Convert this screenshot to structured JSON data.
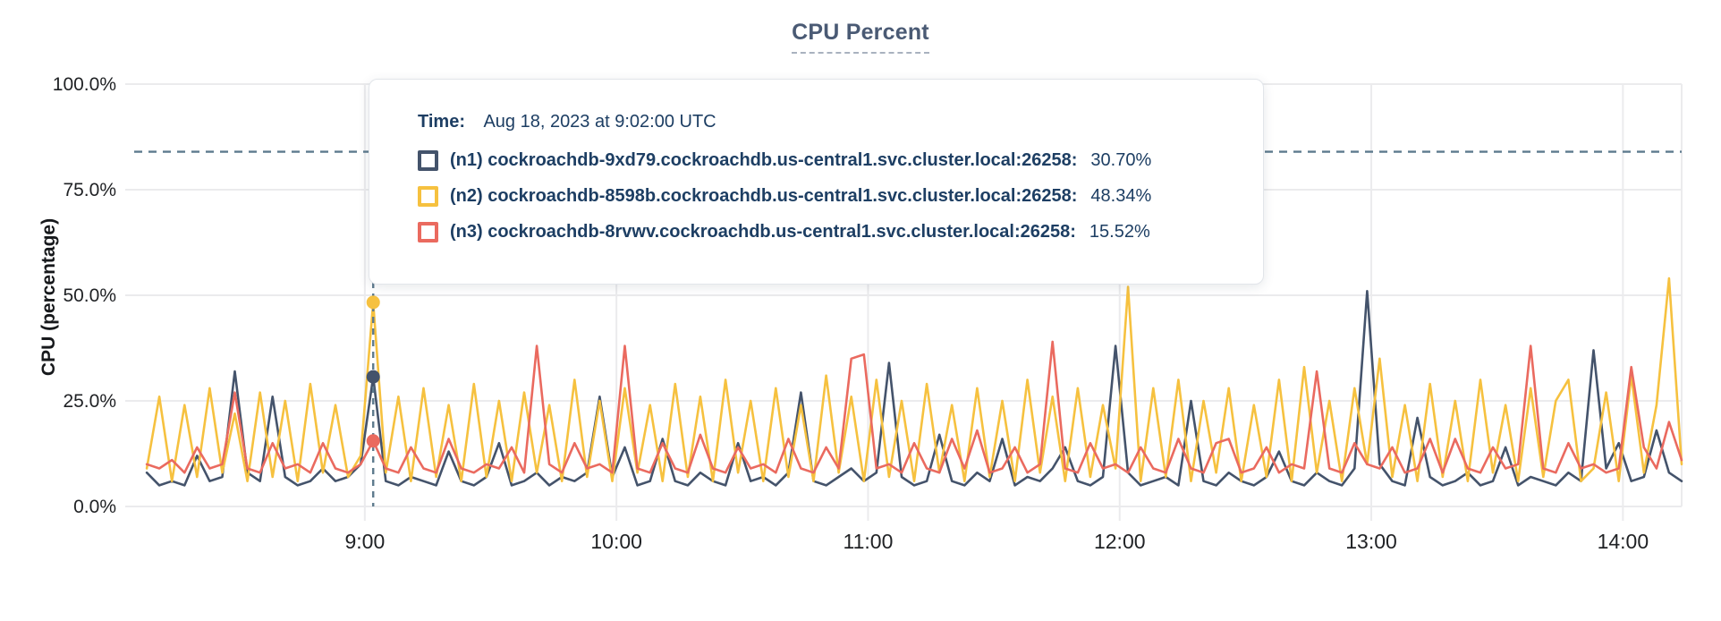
{
  "title": "CPU Percent",
  "tooltip": {
    "time_label": "Time:",
    "time_value": "Aug 18, 2023 at 9:02:00 UTC",
    "rows": [
      {
        "name": "(n1) cockroachdb-9xd79.cockroachdb.us-central1.svc.cluster.local:26258:",
        "value": "30.70%",
        "color": "#44536b"
      },
      {
        "name": "(n2) cockroachdb-8598b.cockroachdb.us-central1.svc.cluster.local:26258:",
        "value": "48.34%",
        "color": "#f6c13f"
      },
      {
        "name": "(n3) cockroachdb-8rvwv.cockroachdb.us-central1.svc.cluster.local:26258:",
        "value": "15.52%",
        "color": "#ea6a5f"
      }
    ]
  },
  "chart_data": {
    "type": "line",
    "title": "CPU Percent",
    "xlabel": "",
    "ylabel": "CPU (percentage)",
    "ylim": [
      0,
      100
    ],
    "grid": true,
    "y_ticks": [
      {
        "label": "100.0%",
        "value": 100
      },
      {
        "label": "75.0%",
        "value": 75
      },
      {
        "label": "50.0%",
        "value": 50
      },
      {
        "label": "25.0%",
        "value": 25
      },
      {
        "label": "0.0%",
        "value": 0
      }
    ],
    "x_ticks": [
      {
        "label": "9:00",
        "minute": 540
      },
      {
        "label": "10:00",
        "minute": 600
      },
      {
        "label": "11:00",
        "minute": 660
      },
      {
        "label": "12:00",
        "minute": 720
      },
      {
        "label": "13:00",
        "minute": 780
      },
      {
        "label": "14:00",
        "minute": 840
      }
    ],
    "x_domain_minutes": [
      485,
      854
    ],
    "x_start_minute": 488,
    "x_step_minutes": 3,
    "threshold_line": {
      "value": 84,
      "color": "#5d7a8d",
      "style": "dashed"
    },
    "hover": {
      "minute": 542,
      "time": "Aug 18, 2023 at 9:02:00 UTC",
      "values": [
        30.7,
        48.34,
        15.52
      ]
    },
    "grid_color": "#ebebed",
    "tick_color": "#1f2124",
    "series": [
      {
        "name": "(n1) cockroachdb-9xd79.cockroachdb.us-central1.svc.cluster.local:26258",
        "color": "#44536b",
        "values": [
          8,
          5,
          6,
          5,
          12,
          6,
          7,
          32,
          8,
          6,
          26,
          7,
          5,
          6,
          9,
          6,
          7,
          10,
          30.7,
          6,
          5,
          7,
          6,
          5,
          13,
          6,
          5,
          7,
          15,
          5,
          6,
          8,
          5,
          7,
          6,
          8,
          26,
          7,
          14,
          5,
          6,
          16,
          6,
          5,
          8,
          6,
          5,
          15,
          6,
          7,
          5,
          8,
          27,
          6,
          5,
          7,
          9,
          6,
          8,
          34,
          7,
          5,
          6,
          17,
          6,
          5,
          8,
          6,
          16,
          5,
          7,
          6,
          9,
          14,
          6,
          5,
          7,
          38,
          8,
          5,
          6,
          7,
          5,
          25,
          6,
          5,
          8,
          6,
          5,
          7,
          13,
          6,
          5,
          8,
          6,
          5,
          9,
          51,
          10,
          6,
          5,
          21,
          7,
          5,
          6,
          8,
          5,
          6,
          14,
          5,
          7,
          6,
          5,
          8,
          6,
          37,
          9,
          15,
          6,
          7,
          18,
          8,
          6
        ]
      },
      {
        "name": "(n2) cockroachdb-8598b.cockroachdb.us-central1.svc.cluster.local:26258",
        "color": "#f6c13f",
        "values": [
          9,
          26,
          6,
          24,
          7,
          28,
          8,
          22,
          6,
          27,
          7,
          25,
          6,
          29,
          8,
          24,
          7,
          12,
          48.34,
          8,
          26,
          6,
          28,
          7,
          24,
          6,
          29,
          7,
          25,
          6,
          27,
          8,
          24,
          6,
          30,
          7,
          25,
          6,
          28,
          8,
          24,
          6,
          29,
          7,
          26,
          6,
          30,
          8,
          25,
          6,
          28,
          7,
          24,
          6,
          31,
          8,
          26,
          6,
          30,
          7,
          25,
          6,
          29,
          8,
          24,
          6,
          28,
          7,
          25,
          6,
          30,
          8,
          26,
          6,
          28,
          7,
          24,
          9,
          52,
          6,
          28,
          7,
          30,
          6,
          25,
          8,
          28,
          6,
          24,
          7,
          30,
          6,
          33,
          8,
          25,
          6,
          28,
          10,
          35,
          7,
          24,
          6,
          29,
          7,
          25,
          6,
          30,
          8,
          24,
          6,
          28,
          7,
          25,
          30,
          6,
          9,
          27,
          6,
          31,
          8,
          24,
          54,
          10
        ]
      },
      {
        "name": "(n3) cockroachdb-8rvwv.cockroachdb.us-central1.svc.cluster.local:26258",
        "color": "#ea6a5f",
        "values": [
          10,
          9,
          11,
          8,
          14,
          9,
          10,
          27,
          9,
          8,
          15,
          9,
          10,
          8,
          15,
          9,
          8,
          10,
          15.52,
          9,
          8,
          14,
          9,
          8,
          16,
          9,
          8,
          10,
          9,
          14,
          8,
          38,
          10,
          8,
          15,
          9,
          10,
          8,
          38,
          9,
          8,
          15,
          9,
          8,
          17,
          9,
          8,
          14,
          9,
          10,
          8,
          16,
          9,
          8,
          14,
          9,
          35,
          36,
          9,
          10,
          8,
          15,
          9,
          8,
          16,
          9,
          18,
          8,
          9,
          14,
          8,
          10,
          39,
          9,
          8,
          15,
          9,
          10,
          8,
          14,
          9,
          8,
          16,
          9,
          8,
          15,
          16,
          8,
          9,
          14,
          8,
          10,
          9,
          32,
          9,
          8,
          15,
          10,
          9,
          14,
          8,
          9,
          16,
          8,
          16,
          9,
          8,
          14,
          9,
          10,
          38,
          9,
          8,
          15,
          9,
          10,
          8,
          9,
          33,
          14,
          9,
          20,
          11
        ]
      }
    ]
  }
}
